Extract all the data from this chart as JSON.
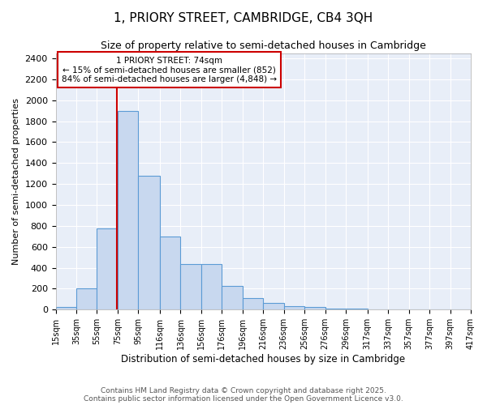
{
  "title": "1, PRIORY STREET, CAMBRIDGE, CB4 3QH",
  "subtitle": "Size of property relative to semi-detached houses in Cambridge",
  "xlabel": "Distribution of semi-detached houses by size in Cambridge",
  "ylabel": "Number of semi-detached properties",
  "bar_color": "#c8d8ef",
  "bar_edge_color": "#5b9bd5",
  "background_color": "#ffffff",
  "plot_bg_color": "#e8eef8",
  "grid_color": "#ffffff",
  "property_line_x": 74,
  "property_line_color": "#cc0000",
  "annotation_text": "1 PRIORY STREET: 74sqm\n← 15% of semi-detached houses are smaller (852)\n84% of semi-detached houses are larger (4,848) →",
  "annotation_box_color": "#ffffff",
  "annotation_box_edge": "#cc0000",
  "bin_edges": [
    15,
    35,
    55,
    75,
    95,
    116,
    136,
    156,
    176,
    196,
    216,
    236,
    256,
    276,
    296,
    317,
    337,
    357,
    377,
    397,
    417
  ],
  "bar_heights": [
    25,
    200,
    775,
    1900,
    1275,
    700,
    435,
    435,
    230,
    110,
    65,
    35,
    25,
    10,
    10,
    5,
    5,
    5,
    5,
    5
  ],
  "ylim": [
    0,
    2450
  ],
  "yticks": [
    0,
    200,
    400,
    600,
    800,
    1000,
    1200,
    1400,
    1600,
    1800,
    2000,
    2200,
    2400
  ],
  "footer_text": "Contains HM Land Registry data © Crown copyright and database right 2025.\nContains public sector information licensed under the Open Government Licence v3.0.",
  "tick_labels": [
    "15sqm",
    "35sqm",
    "55sqm",
    "75sqm",
    "95sqm",
    "116sqm",
    "136sqm",
    "156sqm",
    "176sqm",
    "196sqm",
    "216sqm",
    "236sqm",
    "256sqm",
    "276sqm",
    "296sqm",
    "317sqm",
    "337sqm",
    "357sqm",
    "377sqm",
    "397sqm",
    "417sqm"
  ]
}
